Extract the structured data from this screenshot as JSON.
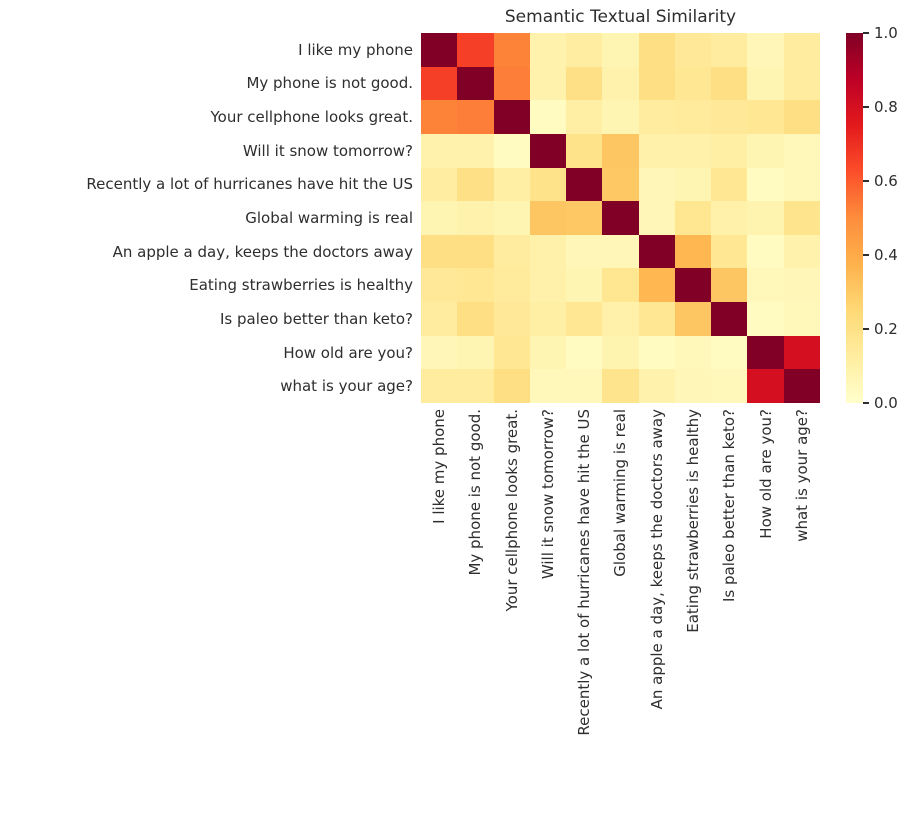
{
  "figure": {
    "background": "#ffffff",
    "text_color": "#2e2e2e"
  },
  "chart_data": {
    "type": "heatmap",
    "title": "Semantic Textual Similarity",
    "categories": [
      "I like my phone",
      "My phone is not good.",
      "Your cellphone looks great.",
      "Will it snow tomorrow?",
      "Recently a lot of hurricanes have hit the US",
      "Global warming is real",
      "An apple a day, keeps the doctors away",
      "Eating strawberries is healthy",
      "Is paleo better than keto?",
      "How old are you?",
      "what is your age?"
    ],
    "x_same_as_y": true,
    "x_label_rotation_deg": 90,
    "matrix": [
      [
        1.0,
        0.66,
        0.52,
        0.09,
        0.12,
        0.07,
        0.21,
        0.15,
        0.13,
        0.06,
        0.13
      ],
      [
        0.66,
        1.0,
        0.53,
        0.09,
        0.2,
        0.09,
        0.21,
        0.16,
        0.21,
        0.07,
        0.13
      ],
      [
        0.52,
        0.53,
        1.0,
        0.03,
        0.11,
        0.07,
        0.13,
        0.14,
        0.15,
        0.16,
        0.21
      ],
      [
        0.09,
        0.09,
        0.03,
        1.0,
        0.19,
        0.31,
        0.1,
        0.1,
        0.11,
        0.07,
        0.05
      ],
      [
        0.12,
        0.2,
        0.11,
        0.19,
        1.0,
        0.3,
        0.06,
        0.07,
        0.16,
        0.03,
        0.05
      ],
      [
        0.07,
        0.09,
        0.07,
        0.31,
        0.3,
        1.0,
        0.06,
        0.17,
        0.1,
        0.08,
        0.18
      ],
      [
        0.21,
        0.21,
        0.13,
        0.1,
        0.06,
        0.06,
        1.0,
        0.36,
        0.16,
        0.03,
        0.09
      ],
      [
        0.15,
        0.16,
        0.14,
        0.1,
        0.07,
        0.17,
        0.36,
        1.0,
        0.31,
        0.05,
        0.06
      ],
      [
        0.13,
        0.21,
        0.15,
        0.11,
        0.16,
        0.1,
        0.16,
        0.31,
        1.0,
        0.03,
        0.05
      ],
      [
        0.06,
        0.07,
        0.16,
        0.07,
        0.03,
        0.08,
        0.03,
        0.05,
        0.03,
        1.0,
        0.8
      ],
      [
        0.13,
        0.13,
        0.21,
        0.05,
        0.05,
        0.18,
        0.09,
        0.06,
        0.05,
        0.8,
        1.0
      ]
    ],
    "vmin": 0.0,
    "vmax": 1.0,
    "colormap": "YlOrRd",
    "colormap_stops": [
      [
        0.0,
        "#ffffcc"
      ],
      [
        0.125,
        "#ffeda0"
      ],
      [
        0.25,
        "#fed976"
      ],
      [
        0.375,
        "#feb24c"
      ],
      [
        0.5,
        "#fd8d3c"
      ],
      [
        0.625,
        "#fc4e2a"
      ],
      [
        0.75,
        "#e31a1c"
      ],
      [
        0.875,
        "#bd0026"
      ],
      [
        1.0,
        "#800026"
      ]
    ],
    "colorbar_ticks": [
      {
        "value": 1.0,
        "label": "1.0"
      },
      {
        "value": 0.8,
        "label": "0.8"
      },
      {
        "value": 0.6,
        "label": "0.6"
      },
      {
        "value": 0.4,
        "label": "0.4"
      },
      {
        "value": 0.2,
        "label": "0.2"
      },
      {
        "value": 0.0,
        "label": "0.0"
      }
    ],
    "legend_position": "right",
    "grid": false
  }
}
